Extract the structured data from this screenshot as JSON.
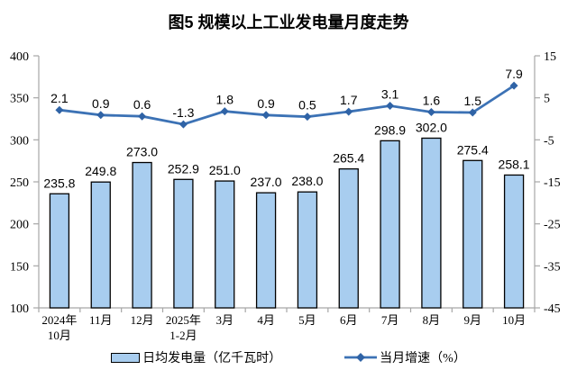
{
  "title": "图5  规模以上工业发电量月度走势",
  "colors": {
    "bar_fill": "#A8CDEF",
    "bar_stroke": "#000000",
    "line": "#3C72B5",
    "marker": "#2F63A6",
    "axis": "#A6A6A6",
    "text": "#000000"
  },
  "chart_data": {
    "type": "combo",
    "title": "图5  规模以上工业发电量月度走势",
    "categories": [
      "2024年\n10月",
      "11月",
      "12月",
      "2025年\n1-2月",
      "3月",
      "4月",
      "5月",
      "6月",
      "7月",
      "8月",
      "9月",
      "10月"
    ],
    "series": [
      {
        "name": "日均发电量（亿千瓦时）",
        "type": "bar",
        "axis": "left",
        "values": [
          235.8,
          249.8,
          273.0,
          252.9,
          251.0,
          237.0,
          238.0,
          265.4,
          298.9,
          302.0,
          275.4,
          258.1
        ]
      },
      {
        "name": "当月增速（%）",
        "type": "line",
        "axis": "right",
        "values": [
          2.1,
          0.9,
          0.6,
          -1.3,
          1.8,
          0.9,
          0.5,
          1.7,
          3.1,
          1.6,
          1.5,
          7.9
        ]
      }
    ],
    "left_axis": {
      "min": 100,
      "max": 400,
      "ticks": [
        100,
        150,
        200,
        250,
        300,
        350,
        400
      ]
    },
    "right_axis": {
      "min": -45,
      "max": 15,
      "ticks": [
        -45,
        -35,
        -25,
        -15,
        -5,
        5,
        15
      ]
    },
    "legend_position": "bottom",
    "grid": false
  }
}
